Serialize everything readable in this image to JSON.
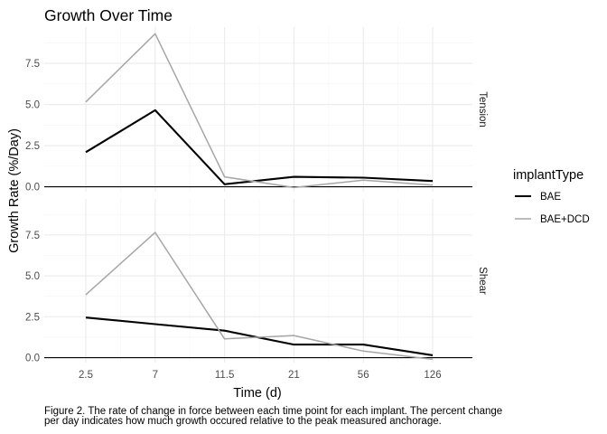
{
  "chart_data": {
    "type": "line",
    "title": "Growth Over Time",
    "xlabel": "Time (d)",
    "ylabel": "Growth Rate (%/Day)",
    "categories": [
      "2.5",
      "7",
      "11.5",
      "21",
      "56",
      "126"
    ],
    "ylim": [
      -0.3,
      9.7
    ],
    "yticks": [
      0.0,
      2.5,
      5.0,
      7.5
    ],
    "ytick_labels": [
      "0.0",
      "2.5",
      "5.0",
      "7.5"
    ],
    "grid": true,
    "legend": {
      "title": "implantType",
      "position": "right"
    },
    "series_colors": {
      "BAE": "#000000",
      "BAE+DCD": "#a6a6a6"
    },
    "panels": [
      {
        "strip": "Tension",
        "series": [
          {
            "name": "BAE",
            "values": [
              2.1,
              4.65,
              0.15,
              0.6,
              0.55,
              0.35
            ]
          },
          {
            "name": "BAE+DCD",
            "values": [
              5.15,
              9.3,
              0.6,
              -0.05,
              0.4,
              0.1
            ]
          }
        ]
      },
      {
        "strip": "Shear",
        "series": [
          {
            "name": "BAE",
            "values": [
              2.45,
              2.05,
              1.65,
              0.8,
              0.8,
              0.15
            ]
          },
          {
            "name": "BAE+DCD",
            "values": [
              3.85,
              7.65,
              1.15,
              1.35,
              0.4,
              -0.1
            ]
          }
        ]
      }
    ],
    "caption_lines": [
      "Figure 2. The rate of change in force between each time point for each implant. The percent change",
      "per day indicates how much growth occured relative to the peak measured anchorage."
    ]
  }
}
